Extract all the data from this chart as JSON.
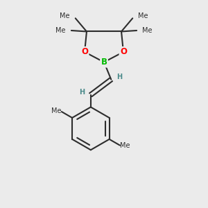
{
  "background_color": "#ebebeb",
  "bond_color": "#2d2d2d",
  "bond_width": 1.5,
  "B_color": "#00bb00",
  "O_color": "#ff0000",
  "H_color": "#4a8a8a",
  "C_color": "#2d2d2d",
  "font_size_atoms": 8.5,
  "font_size_H": 7.0,
  "font_size_methyl": 7.0,
  "xlim": [
    0,
    10
  ],
  "ylim": [
    0,
    10
  ]
}
